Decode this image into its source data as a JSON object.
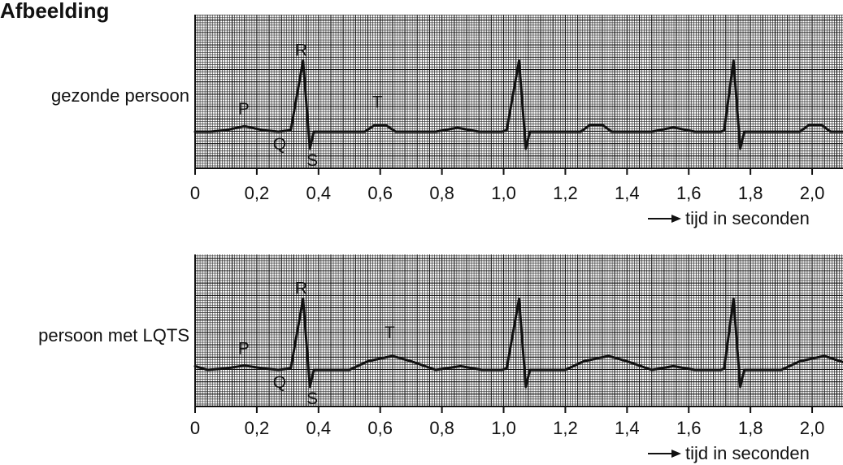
{
  "figure_title": "Afbeelding",
  "chart_data": [
    {
      "type": "line",
      "series_label": "gezonde persoon",
      "xlabel": "tijd in seconden",
      "xlim": [
        0,
        2.1
      ],
      "xticks": [
        0,
        0.2,
        0.4,
        0.6,
        0.8,
        1.0,
        1.2,
        1.4,
        1.6,
        1.8,
        2.0
      ],
      "xtick_labels": [
        "0",
        "0,2",
        "0,4",
        "0,6",
        "0,8",
        "1,0",
        "1,2",
        "1,4",
        "1,6",
        "1,8",
        "2,0"
      ],
      "grid": true,
      "wave_labels": [
        {
          "text": "P",
          "x": 0.16
        },
        {
          "text": "Q",
          "x": 0.305
        },
        {
          "text": "R",
          "x": 0.35
        },
        {
          "text": "S",
          "x": 0.372
        },
        {
          "text": "T",
          "x": 0.6
        }
      ],
      "points": [
        [
          0,
          0
        ],
        [
          0.05,
          0
        ],
        [
          0.1,
          0.05
        ],
        [
          0.16,
          0.18
        ],
        [
          0.22,
          0.05
        ],
        [
          0.27,
          0
        ],
        [
          0.31,
          0.05
        ],
        [
          0.35,
          2.3
        ],
        [
          0.372,
          -0.55
        ],
        [
          0.385,
          0
        ],
        [
          0.55,
          0
        ],
        [
          0.58,
          0.2
        ],
        [
          0.62,
          0.2
        ],
        [
          0.65,
          0
        ],
        [
          0.78,
          0
        ],
        [
          0.85,
          0.13
        ],
        [
          0.92,
          0
        ],
        [
          0.995,
          0
        ],
        [
          1.01,
          0.05
        ],
        [
          1.05,
          2.3
        ],
        [
          1.072,
          -0.55
        ],
        [
          1.085,
          0
        ],
        [
          1.25,
          0
        ],
        [
          1.28,
          0.22
        ],
        [
          1.32,
          0.22
        ],
        [
          1.35,
          0
        ],
        [
          1.48,
          0
        ],
        [
          1.55,
          0.14
        ],
        [
          1.62,
          0
        ],
        [
          1.705,
          0
        ],
        [
          1.715,
          0.05
        ],
        [
          1.745,
          2.3
        ],
        [
          1.767,
          -0.55
        ],
        [
          1.78,
          0
        ],
        [
          1.96,
          0
        ],
        [
          1.99,
          0.22
        ],
        [
          2.03,
          0.22
        ],
        [
          2.06,
          0
        ],
        [
          2.1,
          0
        ]
      ]
    },
    {
      "type": "line",
      "series_label": "persoon met LQTS",
      "xlabel": "tijd in seconden",
      "xlim": [
        0,
        2.1
      ],
      "xticks": [
        0,
        0.2,
        0.4,
        0.6,
        0.8,
        1.0,
        1.2,
        1.4,
        1.6,
        1.8,
        2.0
      ],
      "xtick_labels": [
        "0",
        "0,2",
        "0,4",
        "0,6",
        "0,8",
        "1,0",
        "1,2",
        "1,4",
        "1,6",
        "1,8",
        "2,0"
      ],
      "grid": true,
      "wave_labels": [
        {
          "text": "P",
          "x": 0.16
        },
        {
          "text": "Q",
          "x": 0.305
        },
        {
          "text": "R",
          "x": 0.35
        },
        {
          "text": "S",
          "x": 0.372
        },
        {
          "text": "T",
          "x": 0.64
        }
      ],
      "points": [
        [
          0,
          0.12
        ],
        [
          0.04,
          0
        ],
        [
          0.1,
          0.05
        ],
        [
          0.16,
          0.14
        ],
        [
          0.22,
          0.05
        ],
        [
          0.27,
          0
        ],
        [
          0.31,
          0.05
        ],
        [
          0.35,
          2.3
        ],
        [
          0.372,
          -0.55
        ],
        [
          0.385,
          0
        ],
        [
          0.5,
          0
        ],
        [
          0.56,
          0.28
        ],
        [
          0.64,
          0.45
        ],
        [
          0.7,
          0.28
        ],
        [
          0.78,
          0
        ],
        [
          0.86,
          0.12
        ],
        [
          0.93,
          0
        ],
        [
          0.995,
          0
        ],
        [
          1.01,
          0.05
        ],
        [
          1.05,
          2.3
        ],
        [
          1.072,
          -0.55
        ],
        [
          1.085,
          0
        ],
        [
          1.2,
          0
        ],
        [
          1.26,
          0.28
        ],
        [
          1.34,
          0.45
        ],
        [
          1.4,
          0.28
        ],
        [
          1.48,
          0
        ],
        [
          1.55,
          0.12
        ],
        [
          1.62,
          0
        ],
        [
          1.705,
          0
        ],
        [
          1.715,
          0.05
        ],
        [
          1.745,
          2.3
        ],
        [
          1.767,
          -0.55
        ],
        [
          1.78,
          0
        ],
        [
          1.9,
          0
        ],
        [
          1.96,
          0.28
        ],
        [
          2.04,
          0.45
        ],
        [
          2.1,
          0.25
        ]
      ]
    }
  ]
}
